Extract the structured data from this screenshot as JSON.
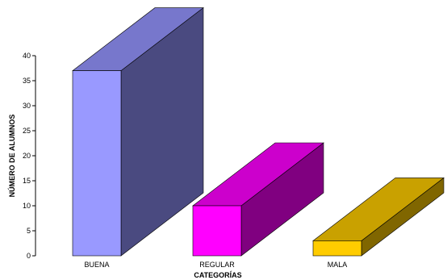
{
  "chart_data": {
    "type": "bar",
    "style": "3d",
    "categories": [
      "BUENA",
      "REGULAR",
      "MALA"
    ],
    "values": [
      37,
      10,
      3
    ],
    "xlabel": "CATEGORÍAS",
    "ylabel": "NÚMERO DE ALUMNOS",
    "ylim": [
      0,
      40
    ],
    "yticks": [
      0,
      5,
      10,
      15,
      20,
      25,
      30,
      35,
      40
    ],
    "grid": false,
    "legend": "none",
    "colors": [
      {
        "front": "#9999ff",
        "top": "#7777cc",
        "side": "#4a4a80"
      },
      {
        "front": "#ff00ff",
        "top": "#cc00cc",
        "side": "#800080"
      },
      {
        "front": "#ffcc00",
        "top": "#c9a100",
        "side": "#806600"
      }
    ]
  }
}
